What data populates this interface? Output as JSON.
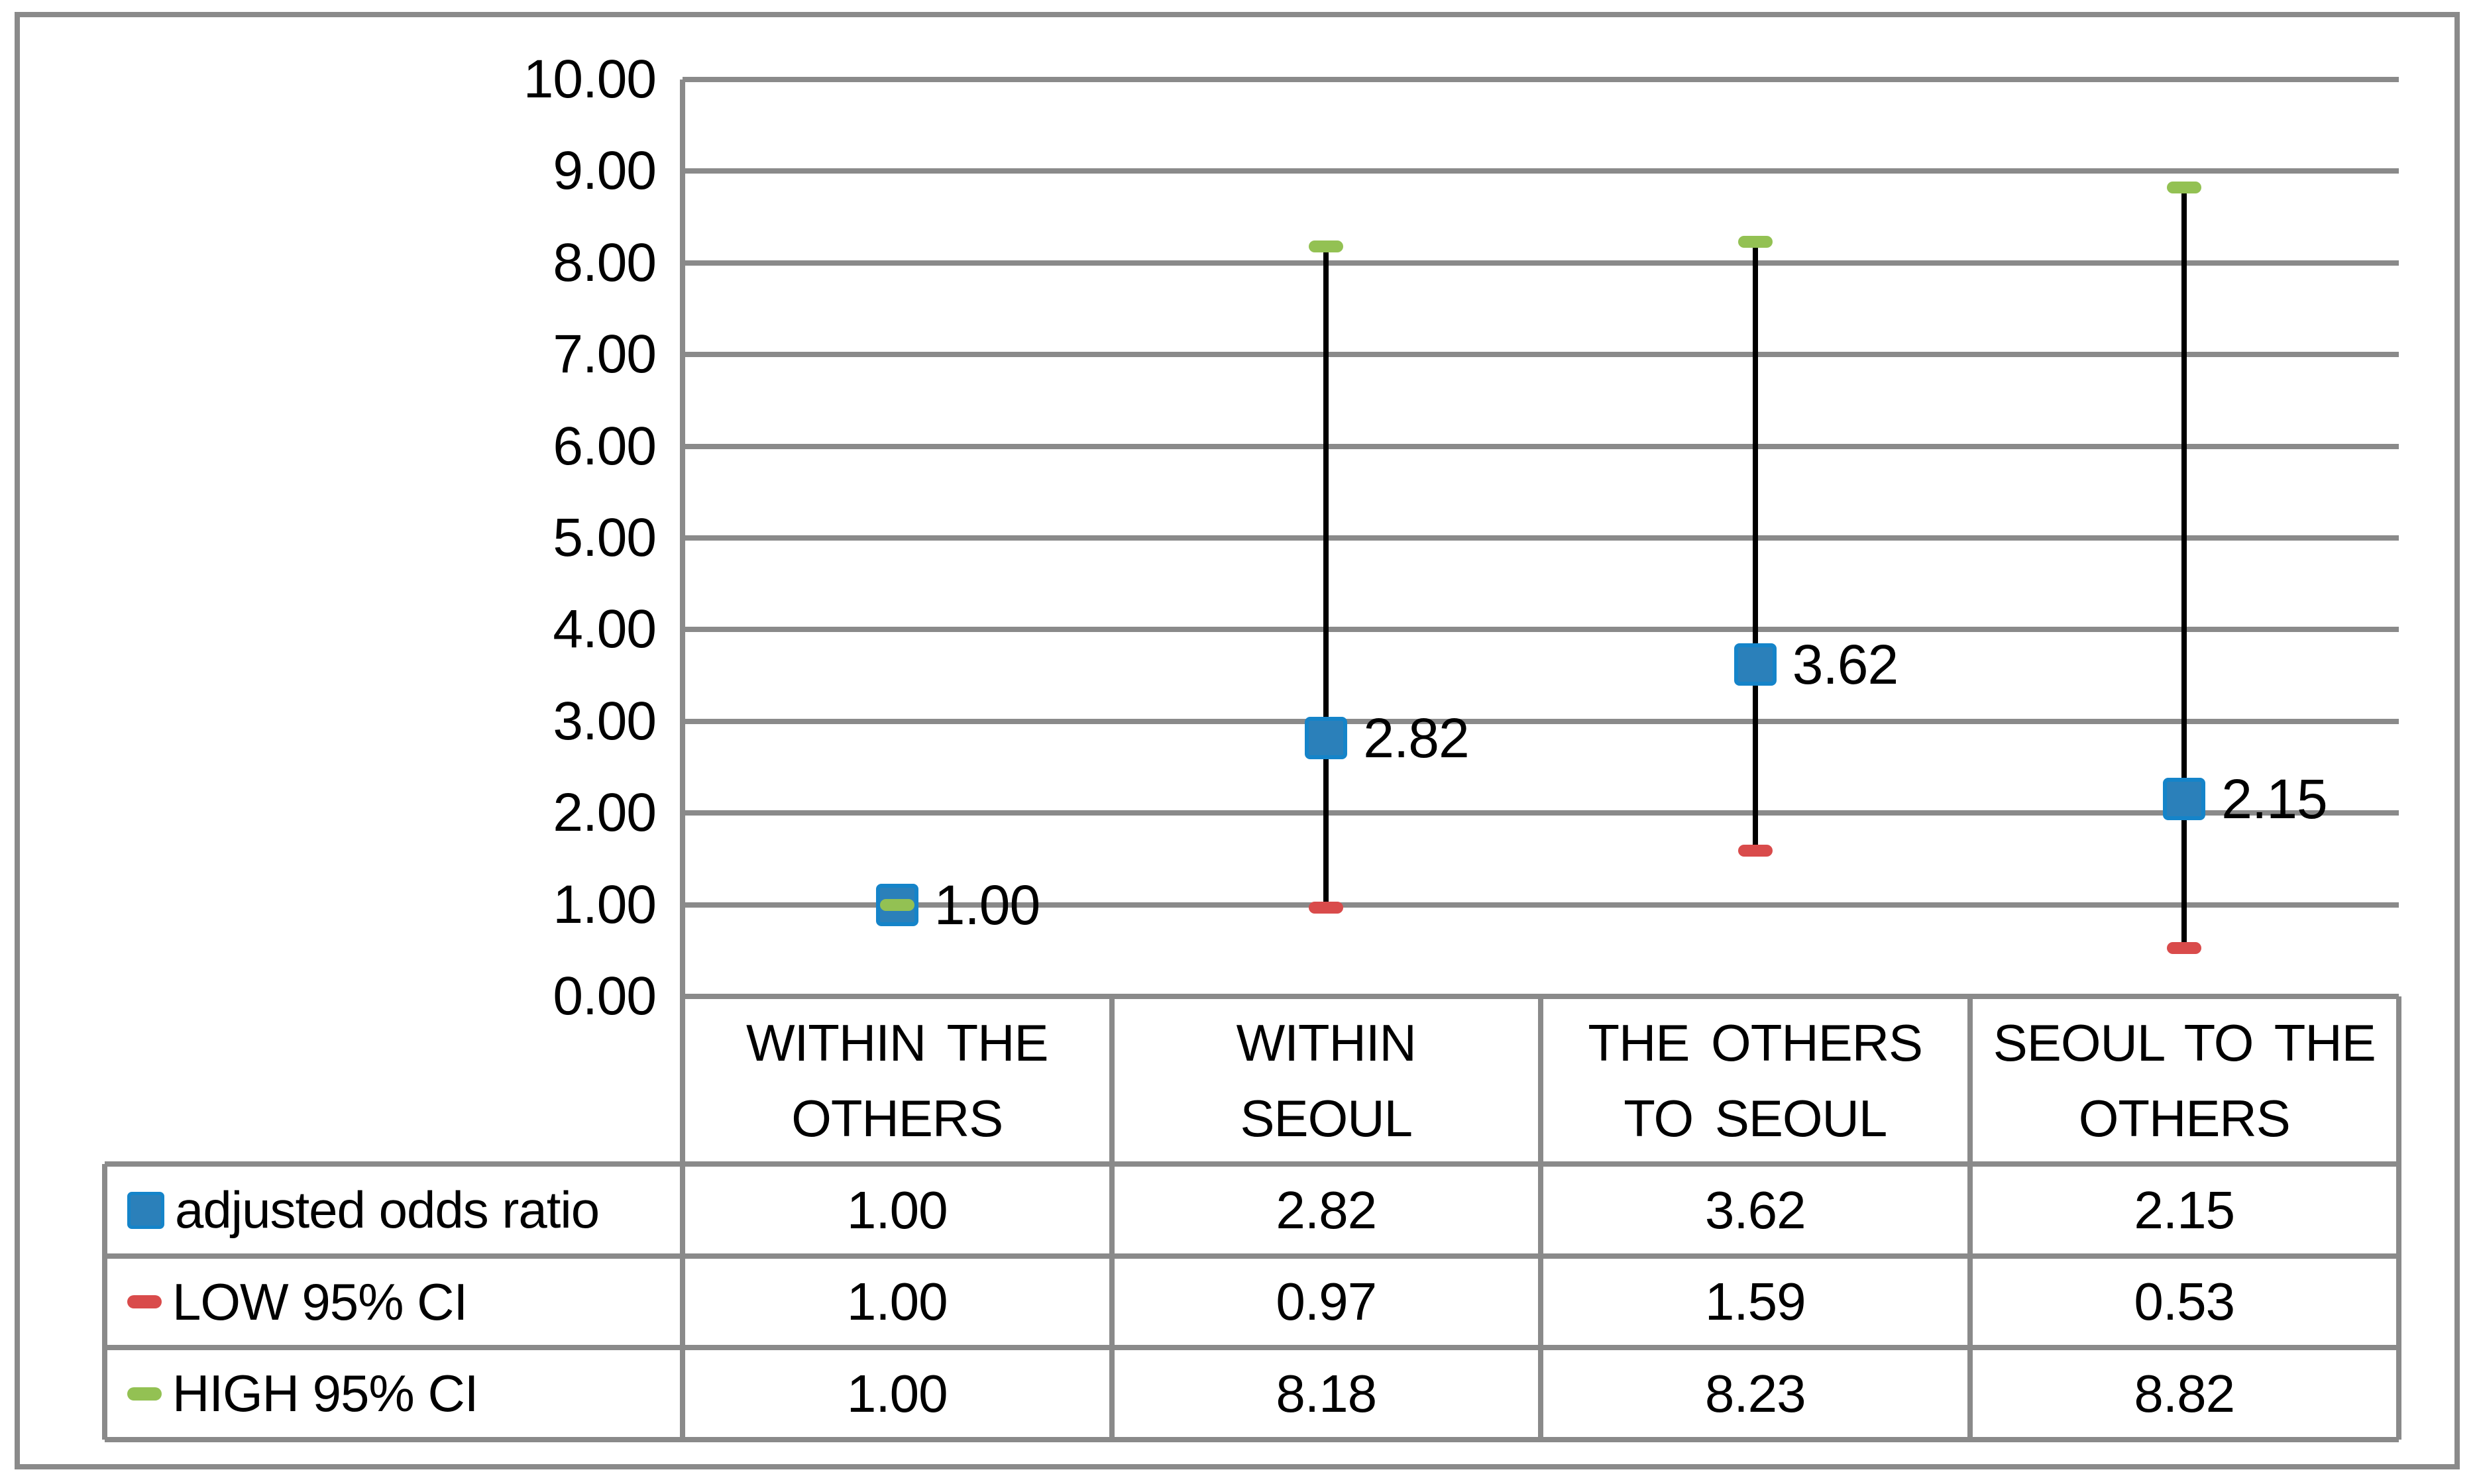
{
  "figure": {
    "background": "#ffffff",
    "border_color": "#8a8a8a"
  },
  "chart_data": {
    "type": "scatter",
    "subtype": "odds-ratio-points-with-95ci-error-bars-and-data-table",
    "title": "",
    "categories": [
      "WITHIN THE OTHERS",
      "WITHIN SEOUL",
      "THE OTHERS TO SEOUL",
      "SEOUL TO THE OTHERS"
    ],
    "category_lines": [
      [
        "WITHIN THE",
        "OTHERS"
      ],
      [
        "WITHIN",
        "SEOUL"
      ],
      [
        "THE OTHERS",
        "TO SEOUL"
      ],
      [
        "SEOUL TO THE",
        "OTHERS"
      ]
    ],
    "series": [
      {
        "name": "adjusted odds ratio",
        "marker": "square",
        "color": "#2b80ba",
        "marker_border_color": "#1584c9",
        "values": [
          1.0,
          2.82,
          3.62,
          2.15
        ],
        "labels": [
          "1.00",
          "2.82",
          "3.62",
          "2.15"
        ]
      },
      {
        "name": "LOW 95% CI",
        "marker": "dash",
        "color": "#d94b4b",
        "values": [
          1.0,
          0.97,
          1.59,
          0.53
        ],
        "labels": [
          "1.00",
          "0.97",
          "1.59",
          "0.53"
        ]
      },
      {
        "name": "HIGH 95% CI",
        "marker": "dash",
        "color": "#93c153",
        "values": [
          1.0,
          8.18,
          8.23,
          8.82
        ],
        "labels": [
          "1.00",
          "8.18",
          "8.23",
          "8.82"
        ]
      }
    ],
    "point_labels": {
      "series": "adjusted odds ratio",
      "values": [
        "1.00",
        "2.82",
        "3.62",
        "2.15"
      ]
    },
    "y_axis": {
      "min": 0,
      "max": 10,
      "step": 1,
      "tick_labels": [
        "0.00",
        "1.00",
        "2.00",
        "3.00",
        "4.00",
        "5.00",
        "6.00",
        "7.00",
        "8.00",
        "9.00",
        "10.00"
      ]
    },
    "grid": true,
    "gridline_color": "#8a8a8a",
    "error_bar_color": "#000000",
    "legend_position": "table-left-column",
    "data_table": {
      "row_headers": [
        "adjusted odds ratio",
        "LOW 95% CI",
        "HIGH 95% CI"
      ],
      "rows": [
        [
          "1.00",
          "2.82",
          "3.62",
          "2.15"
        ],
        [
          "1.00",
          "0.97",
          "1.59",
          "0.53"
        ],
        [
          "1.00",
          "8.18",
          "8.23",
          "8.82"
        ]
      ]
    }
  }
}
